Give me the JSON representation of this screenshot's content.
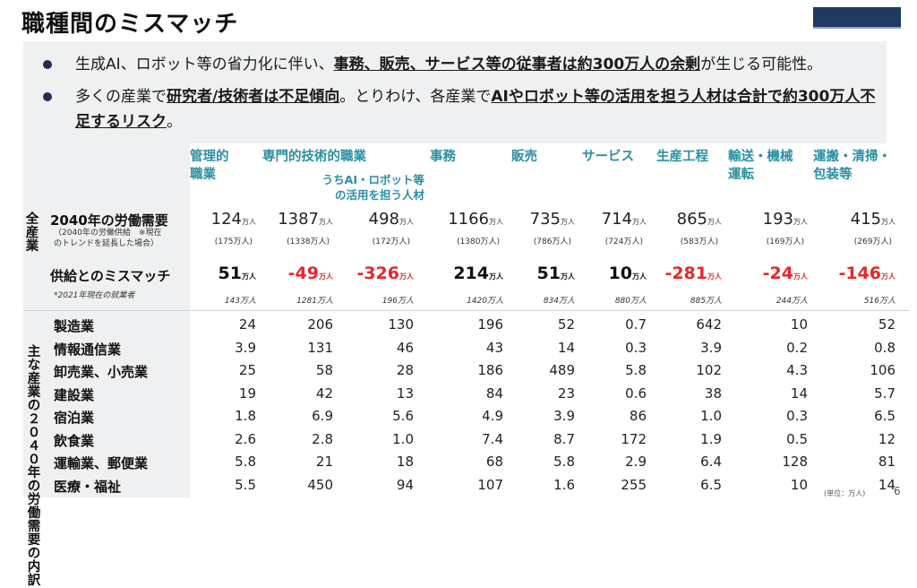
{
  "title": "職種間のミスマッチ",
  "bullets": [
    {
      "parts": [
        {
          "t": "生成AI、ロボット等の省力化に伴い、",
          "b": false
        },
        {
          "t": "事務、販売、サービス等の従事者は約300万人の余剰",
          "b": true
        },
        {
          "t": "が生じる可能性。",
          "b": false
        }
      ]
    },
    {
      "parts": [
        {
          "t": "多くの産業で",
          "b": false
        },
        {
          "t": "研究者/技術者は不足傾向",
          "b": true
        },
        {
          "t": "。とりわけ、各産業で",
          "b": false
        },
        {
          "t": "AIやロボット等の活用を担う人材は合計で約300万人不足するリスク",
          "b": true
        },
        {
          "t": "。",
          "b": false
        }
      ]
    }
  ],
  "columns": [
    "管理的職業",
    "専門的技術的職業",
    "うちAI・ロボット等の活用を担う人材",
    "事務",
    "販売",
    "サービス",
    "生産工程",
    "輸送・機械運転",
    "運搬・清掃・包装等"
  ],
  "col_headers": {
    "c0": "管理的\n職業",
    "c1": "専門的技術的職業",
    "c2": "うちAI・ロボット等\nの活用を担う人材",
    "c3": "事務",
    "c4": "販売",
    "c5": "サービス",
    "c6": "生産工程",
    "c7": "輸送・機械\n運転",
    "c8": "運搬・清掃・\n包装等"
  },
  "all_industries_label": "全産業",
  "demand": {
    "label": "2040年の労働需要",
    "note": "（2040年の労働供給　※現在\nのトレンドを延長した場合）",
    "unit": "万人",
    "values": [
      "124",
      "1387",
      "498",
      "1166",
      "735",
      "714",
      "865",
      "193",
      "415"
    ],
    "supply": [
      "(175万人)",
      "(1338万人)",
      "(172万人)",
      "(1380万人)",
      "(786万人)",
      "(724万人)",
      "(583万人)",
      "(169万人)",
      "(269万人)"
    ]
  },
  "mismatch": {
    "label": "供給とのミスマッチ",
    "unit": "万人",
    "values": [
      "51",
      "-49",
      "-326",
      "214",
      "51",
      "10",
      "-281",
      "-24",
      "-146"
    ],
    "negative": [
      false,
      true,
      true,
      false,
      false,
      false,
      true,
      true,
      true
    ],
    "employed_note": "*2021年現在の就業者",
    "employed": [
      "143万人",
      "1281万人",
      "196万人",
      "1420万人",
      "834万人",
      "880万人",
      "885万人",
      "244万人",
      "516万人"
    ]
  },
  "breakdown_label": "主な産業の２０４０年の労働需要の内訳",
  "industries": [
    {
      "name": "製造業",
      "values": [
        "24",
        "206",
        "130",
        "196",
        "52",
        "0.7",
        "642",
        "10",
        "52"
      ]
    },
    {
      "name": "情報通信業",
      "values": [
        "3.9",
        "131",
        "46",
        "43",
        "14",
        "0.3",
        "3.9",
        "0.2",
        "0.8"
      ]
    },
    {
      "name": "卸売業、小売業",
      "values": [
        "25",
        "58",
        "28",
        "186",
        "489",
        "5.8",
        "102",
        "4.3",
        "106"
      ]
    },
    {
      "name": "建設業",
      "values": [
        "19",
        "42",
        "13",
        "84",
        "23",
        "0.6",
        "38",
        "14",
        "5.7"
      ]
    },
    {
      "name": "宿泊業",
      "values": [
        "1.8",
        "6.9",
        "5.6",
        "4.9",
        "3.9",
        "86",
        "1.0",
        "0.3",
        "6.5"
      ]
    },
    {
      "name": "飲食業",
      "values": [
        "2.6",
        "2.8",
        "1.0",
        "7.4",
        "8.7",
        "172",
        "1.9",
        "0.5",
        "12"
      ]
    },
    {
      "name": "運輸業、郵便業",
      "values": [
        "5.8",
        "21",
        "18",
        "68",
        "5.8",
        "2.9",
        "6.4",
        "128",
        "81"
      ]
    },
    {
      "name": "医療・福祉",
      "values": [
        "5.5",
        "450",
        "94",
        "107",
        "1.6",
        "255",
        "6.5",
        "10",
        "14"
      ]
    }
  ],
  "footer_unit": "(単位：万人)",
  "page_number": "6",
  "colors": {
    "accent": "#1f3a5f",
    "header_teal": "#2a8fa3",
    "negative_red": "#e8262b",
    "shade": "#eef0f1"
  }
}
